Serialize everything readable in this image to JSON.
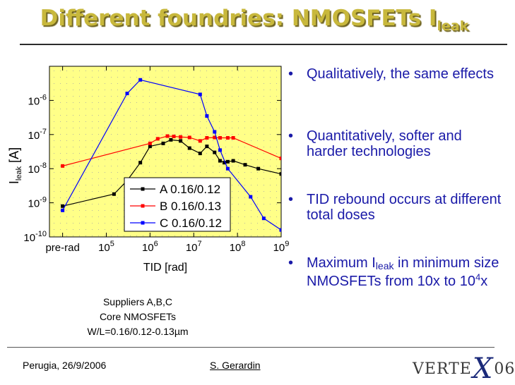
{
  "slide": {
    "title_main": "Different foundries: NMOSFETs I",
    "title_sub": "leak",
    "bullets": [
      {
        "text": "Qualitatively, the same effects"
      },
      {
        "text": "Quantitatively, softer and harder technologies"
      },
      {
        "text": "TID rebound occurs at different total doses"
      },
      {
        "text_a": "Maximum I",
        "sub": "leak",
        "text_b": " in minimum size NMOSFETs from 10x to 10",
        "sup": "4",
        "text_c": "x"
      }
    ],
    "bullet_symbol": "•",
    "note_lines": [
      "Suppliers A,B,C",
      "Core NMOSFETs",
      "W/L=0.16/0.12-0.13µm"
    ],
    "footer_left": "Perugia, 26/9/2006",
    "footer_center": "S. Gerardin",
    "logo_left": "VERTE",
    "logo_x": "X",
    "logo_right": "06"
  },
  "colors": {
    "title": "#c8b83c",
    "bullets": "#1a1aa8",
    "plot_bg": "#ffff88"
  },
  "chart_data": {
    "type": "line",
    "xlabel": "TID [rad]",
    "ylabel_main": "I",
    "ylabel_sub": "leak",
    "ylabel_unit": "[A]",
    "xscale": "log",
    "yscale": "log",
    "xlim": [
      5000,
      1000000000
    ],
    "ylim": [
      1e-10,
      1e-05
    ],
    "x_ticks": [
      {
        "value": 10000,
        "label": "pre-rad"
      },
      {
        "value": 100000,
        "base": "10",
        "exp": "5"
      },
      {
        "value": 1000000,
        "base": "10",
        "exp": "6"
      },
      {
        "value": 10000000,
        "base": "10",
        "exp": "7"
      },
      {
        "value": 100000000,
        "base": "10",
        "exp": "8"
      },
      {
        "value": 1000000000,
        "base": "10",
        "exp": "9"
      }
    ],
    "y_ticks": [
      {
        "value": 1e-10,
        "base": "10",
        "exp": "-10"
      },
      {
        "value": 1e-09,
        "base": "10",
        "exp": "-9"
      },
      {
        "value": 1e-08,
        "base": "10",
        "exp": "-8"
      },
      {
        "value": 1e-07,
        "base": "10",
        "exp": "-7"
      },
      {
        "value": 1e-06,
        "base": "10",
        "exp": "-6"
      }
    ],
    "grid": false,
    "legend_position": "bottom-left",
    "series": [
      {
        "name": "A 0.16/0.12",
        "color": "#000000",
        "x": [
          10000,
          150000,
          300000,
          600000,
          1000000,
          2000000,
          3000000,
          5000000,
          8000000,
          14000000,
          20000000,
          30000000,
          40000000,
          50000000,
          60000000,
          80000000,
          150000000,
          300000000,
          1000000000
        ],
        "y": [
          8e-10,
          1.8e-09,
          4.5e-09,
          1.5e-08,
          4.5e-08,
          5.5e-08,
          7e-08,
          6.5e-08,
          4e-08,
          2.8e-08,
          4.5e-08,
          3e-08,
          1.7e-08,
          1.5e-08,
          1.6e-08,
          1.7e-08,
          1.3e-08,
          1e-08,
          7e-09
        ]
      },
      {
        "name": "B 0.16/0.13",
        "color": "#ff0000",
        "x": [
          10000,
          1000000,
          1500000,
          2500000,
          3500000,
          5000000,
          8000000,
          14000000,
          20000000,
          30000000,
          40000000,
          60000000,
          80000000,
          1000000000
        ],
        "y": [
          1.2e-08,
          5.5e-08,
          7.5e-08,
          9e-08,
          8.8e-08,
          8.5e-08,
          8.2e-08,
          6.5e-08,
          8e-08,
          8.2e-08,
          8e-08,
          8e-08,
          8e-08,
          2e-08
        ]
      },
      {
        "name": "C 0.16/0.12",
        "color": "#0000ff",
        "x": [
          10000,
          300000,
          600000,
          14000000,
          20000000,
          30000000,
          40000000,
          60000000,
          200000000,
          400000000,
          1000000000
        ],
        "y": [
          6e-10,
          1.6e-06,
          4e-06,
          1.5e-06,
          3.5e-07,
          1.2e-07,
          3.5e-08,
          1e-08,
          1.5e-09,
          3.5e-10,
          1.6e-10
        ]
      }
    ]
  }
}
